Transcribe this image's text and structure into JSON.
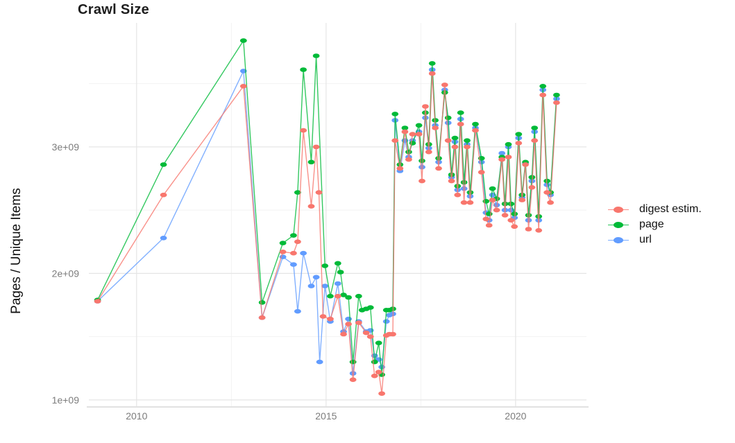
{
  "title": "Crawl Size",
  "legend": {
    "position": "right",
    "items": [
      {
        "id": "digest",
        "label": "digest estim.",
        "color": "#F8766D"
      },
      {
        "id": "page",
        "label": "page",
        "color": "#00BA38"
      },
      {
        "id": "url",
        "label": "url",
        "color": "#619CFF"
      }
    ]
  },
  "chart_data": {
    "type": "line",
    "title": "Crawl Size",
    "xlabel": "",
    "ylabel": "Pages / Unique Items",
    "grid": true,
    "legend_position": "right",
    "x_axis": {
      "domain": [
        2008.74,
        2021.87
      ],
      "ticks": [
        {
          "v": 2010,
          "label": "2010"
        },
        {
          "v": 2015,
          "label": "2015"
        },
        {
          "v": 2020,
          "label": "2020"
        }
      ],
      "minor": [
        2012.5,
        2017.5
      ],
      "tick_color": "#7c7c7c"
    },
    "y_axis": {
      "domain": [
        0.95,
        3.98
      ],
      "unit": "1e9",
      "ticks": [
        {
          "v": 1,
          "label": "1e+09"
        },
        {
          "v": 2,
          "label": "2e+09"
        },
        {
          "v": 3,
          "label": "3e+09"
        }
      ],
      "minor": [
        1.5,
        2.5,
        3.5
      ],
      "tick_color": "#7c7c7c"
    },
    "series": [
      {
        "name": "digest estim.",
        "color": "#F8766D",
        "points": [
          [
            2008.97,
            1.78
          ],
          [
            2010.71,
            2.62
          ],
          [
            2012.82,
            3.48
          ],
          [
            2013.31,
            1.65
          ],
          [
            2013.86,
            2.17
          ],
          [
            2014.14,
            2.16
          ],
          [
            2014.25,
            2.25
          ],
          [
            2014.4,
            3.13
          ],
          [
            2014.61,
            2.53
          ],
          [
            2014.74,
            3.0
          ],
          [
            2014.81,
            2.64
          ],
          [
            2014.92,
            1.66
          ],
          [
            2015.11,
            1.64
          ],
          [
            2015.31,
            1.82
          ],
          [
            2015.46,
            1.52
          ],
          [
            2015.59,
            1.6
          ],
          [
            2015.71,
            1.16
          ],
          [
            2015.86,
            1.61
          ],
          [
            2016.06,
            1.53
          ],
          [
            2016.17,
            1.5
          ],
          [
            2016.28,
            1.19
          ],
          [
            2016.39,
            1.22
          ],
          [
            2016.47,
            1.05
          ],
          [
            2016.59,
            1.51
          ],
          [
            2016.67,
            1.52
          ],
          [
            2016.76,
            1.52
          ],
          [
            2016.82,
            3.05
          ],
          [
            2016.95,
            2.83
          ],
          [
            2017.08,
            3.12
          ],
          [
            2017.18,
            2.9
          ],
          [
            2017.28,
            3.1
          ],
          [
            2017.45,
            3.1
          ],
          [
            2017.53,
            2.73
          ],
          [
            2017.62,
            3.32
          ],
          [
            2017.71,
            2.96
          ],
          [
            2017.8,
            3.58
          ],
          [
            2017.88,
            3.15
          ],
          [
            2017.97,
            2.83
          ],
          [
            2018.13,
            3.49
          ],
          [
            2018.22,
            3.05
          ],
          [
            2018.31,
            2.73
          ],
          [
            2018.4,
            3.0
          ],
          [
            2018.47,
            2.62
          ],
          [
            2018.55,
            3.18
          ],
          [
            2018.64,
            2.56
          ],
          [
            2018.72,
            3.0
          ],
          [
            2018.8,
            2.56
          ],
          [
            2018.94,
            3.13
          ],
          [
            2019.1,
            2.8
          ],
          [
            2019.22,
            2.43
          ],
          [
            2019.3,
            2.38
          ],
          [
            2019.39,
            2.58
          ],
          [
            2019.5,
            2.5
          ],
          [
            2019.64,
            2.9
          ],
          [
            2019.72,
            2.46
          ],
          [
            2019.81,
            2.92
          ],
          [
            2019.88,
            2.42
          ],
          [
            2019.97,
            2.37
          ],
          [
            2020.08,
            3.03
          ],
          [
            2020.17,
            2.58
          ],
          [
            2020.26,
            2.86
          ],
          [
            2020.34,
            2.35
          ],
          [
            2020.43,
            2.68
          ],
          [
            2020.5,
            3.05
          ],
          [
            2020.61,
            2.34
          ],
          [
            2020.72,
            3.41
          ],
          [
            2020.83,
            2.64
          ],
          [
            2020.92,
            2.56
          ],
          [
            2021.08,
            3.35
          ]
        ]
      },
      {
        "name": "page",
        "color": "#00BA38",
        "points": [
          [
            2008.97,
            1.79
          ],
          [
            2010.71,
            2.86
          ],
          [
            2012.82,
            3.84
          ],
          [
            2013.31,
            1.77
          ],
          [
            2013.86,
            2.24
          ],
          [
            2014.14,
            2.3
          ],
          [
            2014.25,
            2.64
          ],
          [
            2014.4,
            3.61
          ],
          [
            2014.61,
            2.88
          ],
          [
            2014.74,
            3.72
          ],
          [
            2014.97,
            2.06
          ],
          [
            2015.11,
            1.82
          ],
          [
            2015.31,
            2.08
          ],
          [
            2015.38,
            2.01
          ],
          [
            2015.46,
            1.83
          ],
          [
            2015.59,
            1.81
          ],
          [
            2015.71,
            1.3
          ],
          [
            2015.86,
            1.82
          ],
          [
            2015.95,
            1.71
          ],
          [
            2016.06,
            1.72
          ],
          [
            2016.17,
            1.73
          ],
          [
            2016.28,
            1.3
          ],
          [
            2016.39,
            1.45
          ],
          [
            2016.47,
            1.2
          ],
          [
            2016.59,
            1.71
          ],
          [
            2016.67,
            1.71
          ],
          [
            2016.76,
            1.72
          ],
          [
            2016.82,
            3.26
          ],
          [
            2016.95,
            2.86
          ],
          [
            2017.08,
            3.15
          ],
          [
            2017.18,
            2.96
          ],
          [
            2017.28,
            3.03
          ],
          [
            2017.45,
            3.17
          ],
          [
            2017.53,
            2.89
          ],
          [
            2017.62,
            3.27
          ],
          [
            2017.71,
            3.02
          ],
          [
            2017.8,
            3.66
          ],
          [
            2017.88,
            3.21
          ],
          [
            2017.97,
            2.91
          ],
          [
            2018.13,
            3.43
          ],
          [
            2018.22,
            3.23
          ],
          [
            2018.31,
            2.78
          ],
          [
            2018.4,
            3.07
          ],
          [
            2018.47,
            2.69
          ],
          [
            2018.55,
            3.27
          ],
          [
            2018.64,
            2.72
          ],
          [
            2018.72,
            3.05
          ],
          [
            2018.8,
            2.64
          ],
          [
            2018.94,
            3.18
          ],
          [
            2019.1,
            2.91
          ],
          [
            2019.22,
            2.57
          ],
          [
            2019.3,
            2.47
          ],
          [
            2019.39,
            2.67
          ],
          [
            2019.5,
            2.59
          ],
          [
            2019.64,
            2.92
          ],
          [
            2019.72,
            2.55
          ],
          [
            2019.81,
            3.02
          ],
          [
            2019.88,
            2.55
          ],
          [
            2019.97,
            2.47
          ],
          [
            2020.08,
            3.1
          ],
          [
            2020.17,
            2.62
          ],
          [
            2020.26,
            2.88
          ],
          [
            2020.34,
            2.46
          ],
          [
            2020.43,
            2.76
          ],
          [
            2020.5,
            3.15
          ],
          [
            2020.61,
            2.45
          ],
          [
            2020.72,
            3.48
          ],
          [
            2020.83,
            2.73
          ],
          [
            2020.92,
            2.64
          ],
          [
            2021.08,
            3.41
          ]
        ]
      },
      {
        "name": "url",
        "color": "#619CFF",
        "points": [
          [
            2008.97,
            1.78
          ],
          [
            2010.71,
            2.28
          ],
          [
            2012.82,
            3.6
          ],
          [
            2013.31,
            1.65
          ],
          [
            2013.86,
            2.13
          ],
          [
            2014.14,
            2.07
          ],
          [
            2014.25,
            1.7
          ],
          [
            2014.4,
            2.16
          ],
          [
            2014.61,
            1.9
          ],
          [
            2014.74,
            1.97
          ],
          [
            2014.83,
            1.3
          ],
          [
            2014.97,
            1.9
          ],
          [
            2015.11,
            1.62
          ],
          [
            2015.31,
            1.92
          ],
          [
            2015.46,
            1.54
          ],
          [
            2015.59,
            1.64
          ],
          [
            2015.71,
            1.21
          ],
          [
            2015.86,
            1.62
          ],
          [
            2016.06,
            1.54
          ],
          [
            2016.17,
            1.55
          ],
          [
            2016.28,
            1.35
          ],
          [
            2016.39,
            1.32
          ],
          [
            2016.47,
            1.26
          ],
          [
            2016.59,
            1.62
          ],
          [
            2016.67,
            1.67
          ],
          [
            2016.76,
            1.68
          ],
          [
            2016.82,
            3.21
          ],
          [
            2016.95,
            2.81
          ],
          [
            2017.08,
            3.05
          ],
          [
            2017.18,
            2.92
          ],
          [
            2017.28,
            3.05
          ],
          [
            2017.45,
            3.12
          ],
          [
            2017.53,
            2.84
          ],
          [
            2017.62,
            3.23
          ],
          [
            2017.71,
            2.99
          ],
          [
            2017.8,
            3.61
          ],
          [
            2017.88,
            3.17
          ],
          [
            2017.97,
            2.88
          ],
          [
            2018.13,
            3.45
          ],
          [
            2018.22,
            3.19
          ],
          [
            2018.31,
            2.76
          ],
          [
            2018.4,
            3.04
          ],
          [
            2018.47,
            2.66
          ],
          [
            2018.55,
            3.22
          ],
          [
            2018.64,
            2.67
          ],
          [
            2018.72,
            3.02
          ],
          [
            2018.8,
            2.61
          ],
          [
            2018.94,
            3.15
          ],
          [
            2019.1,
            2.88
          ],
          [
            2019.22,
            2.48
          ],
          [
            2019.3,
            2.42
          ],
          [
            2019.39,
            2.62
          ],
          [
            2019.5,
            2.54
          ],
          [
            2019.64,
            2.95
          ],
          [
            2019.72,
            2.5
          ],
          [
            2019.81,
            3.0
          ],
          [
            2019.88,
            2.5
          ],
          [
            2019.97,
            2.44
          ],
          [
            2020.08,
            3.07
          ],
          [
            2020.17,
            2.6
          ],
          [
            2020.26,
            2.87
          ],
          [
            2020.34,
            2.42
          ],
          [
            2020.43,
            2.73
          ],
          [
            2020.5,
            3.12
          ],
          [
            2020.61,
            2.42
          ],
          [
            2020.72,
            3.45
          ],
          [
            2020.83,
            2.7
          ],
          [
            2020.92,
            2.62
          ],
          [
            2021.08,
            3.38
          ]
        ]
      }
    ],
    "style": {
      "major_grid_color": "#e5e5e5",
      "minor_grid_color": "#f2f2f2",
      "axis_line_color": "#cfcfcf",
      "background": "#ffffff"
    }
  }
}
